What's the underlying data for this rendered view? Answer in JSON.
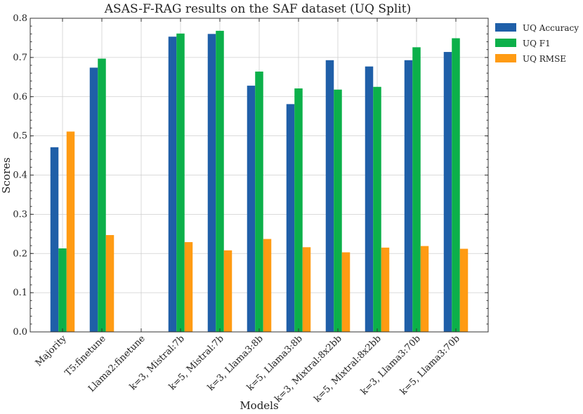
{
  "chart_data": {
    "type": "bar",
    "title": "ASAS-F-RAG results on the SAF dataset (UQ Split)",
    "xlabel": "Models",
    "ylabel": "Scores",
    "ylim": [
      0,
      0.8
    ],
    "yticks": [
      "0.0",
      "0.1",
      "0.2",
      "0.3",
      "0.4",
      "0.5",
      "0.6",
      "0.7",
      "0.8"
    ],
    "grid": true,
    "legend_position": "outside-top-right",
    "categories": [
      "Majority",
      "T5:finetune",
      "Llama2:finetune",
      "k=3, Mistral:7b",
      "k=5, Mistral:7b",
      "k=3, Llama3:8b",
      "k=5, Llama3:8b",
      "k=3, Mixtral:8x2bb",
      "k=5, Mixtral:8x2bb",
      "k=3, Llama3:70b",
      "k=5, Llama3:70b"
    ],
    "series": [
      {
        "name": "UQ Accuracy",
        "color": "#1f5fa8",
        "values": [
          0.471,
          0.674,
          null,
          0.753,
          0.76,
          0.628,
          0.581,
          0.693,
          0.677,
          0.693,
          0.714
        ]
      },
      {
        "name": "UQ F1",
        "color": "#0cb04a",
        "values": [
          0.213,
          0.697,
          null,
          0.761,
          0.768,
          0.664,
          0.621,
          0.618,
          0.625,
          0.726,
          0.749
        ]
      },
      {
        "name": "UQ RMSE",
        "color": "#ff9b13",
        "values": [
          0.511,
          0.247,
          null,
          0.229,
          0.208,
          0.237,
          0.216,
          0.203,
          0.215,
          0.219,
          0.212
        ]
      }
    ]
  }
}
